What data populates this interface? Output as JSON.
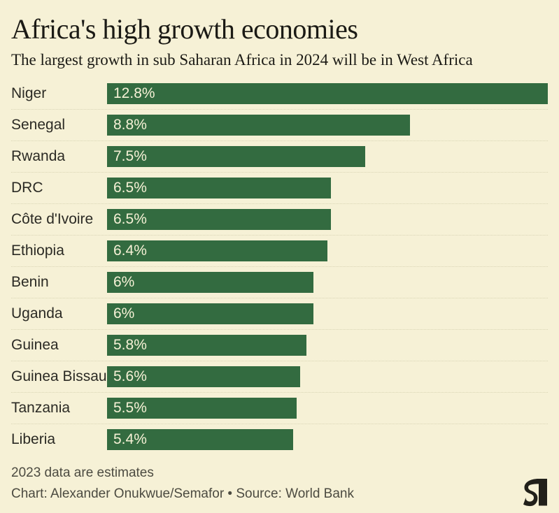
{
  "header": {
    "title": "Africa's high growth economies",
    "subtitle": "The largest growth in sub Saharan Africa in 2024 will be in West Africa"
  },
  "chart_data": {
    "type": "bar",
    "orientation": "horizontal",
    "title": "Africa's high growth economies",
    "subtitle": "The largest growth in sub Saharan Africa in 2024 will be in West Africa",
    "categories": [
      "Niger",
      "Senegal",
      "Rwanda",
      "DRC",
      "Côte d'Ivoire",
      "Ethiopia",
      "Benin",
      "Uganda",
      "Guinea",
      "Guinea Bissau",
      "Tanzania",
      "Liberia"
    ],
    "values": [
      12.8,
      8.8,
      7.5,
      6.5,
      6.5,
      6.4,
      6,
      6,
      5.8,
      5.6,
      5.5,
      5.4
    ],
    "value_labels": [
      "12.8%",
      "8.8%",
      "7.5%",
      "6.5%",
      "6.5%",
      "6.4%",
      "6%",
      "6%",
      "5.8%",
      "5.6%",
      "5.5%",
      "5.4%"
    ],
    "xlim": [
      0,
      12.8
    ],
    "grid": false,
    "legend": "none",
    "value_label_position": "inside-start"
  },
  "footer": {
    "note": "2023 data are estimates",
    "credit": "Chart: Alexander Onukwue/Semafor • Source: World Bank",
    "logo": "semafor-logo"
  },
  "colors": {
    "background": "#f6f1d6",
    "bar": "#336b40",
    "title_text": "#1b1a15",
    "label_text": "#2b2a24",
    "value_text": "#f6f1d6",
    "footer_text": "#4c4b41",
    "separator": "#d9d5b5",
    "logo": "#21201a"
  }
}
